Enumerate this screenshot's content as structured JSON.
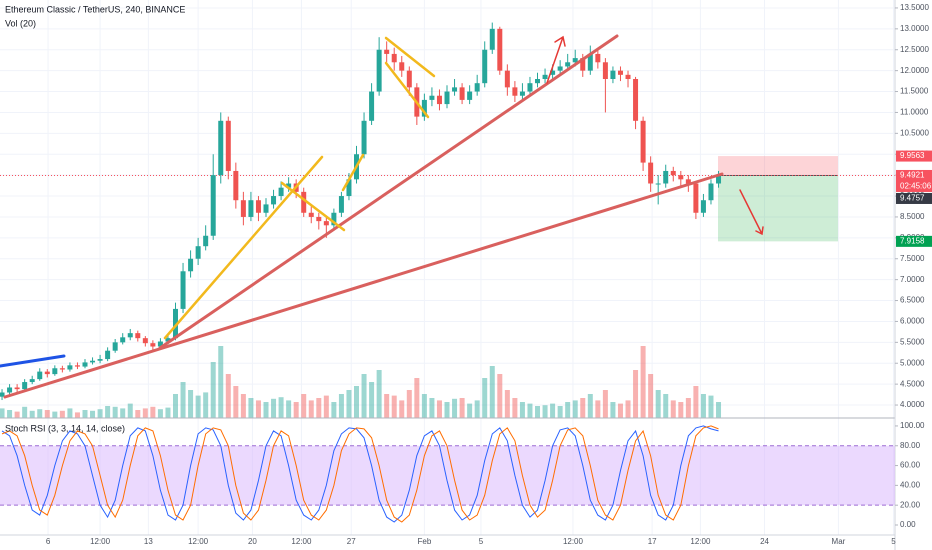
{
  "chart_data": [
    {
      "type": "candlestick",
      "title": "Ethereum Classic / TetherUS, 240, BINANCE",
      "subtitle": "Vol (20)",
      "up_color": "#26a69a",
      "down_color": "#ef5350",
      "open": [
        4.2,
        4.3,
        4.42,
        4.38,
        4.55,
        4.62,
        4.8,
        4.74,
        4.88,
        4.85,
        4.95,
        4.92,
        5.02,
        5.06,
        5.1,
        5.3,
        5.5,
        5.62,
        5.72,
        5.6,
        5.48,
        5.4,
        5.52,
        5.6,
        6.3,
        7.2,
        7.5,
        7.8,
        8.05,
        9.5,
        10.8,
        9.6,
        8.9,
        8.5,
        8.9,
        8.6,
        8.8,
        9.0,
        9.2,
        9.3,
        9.1,
        8.6,
        8.5,
        8.4,
        8.3,
        8.6,
        9.0,
        9.4,
        10.0,
        10.8,
        11.5,
        12.5,
        12.4,
        12.2,
        12.0,
        11.6,
        10.9,
        11.3,
        11.4,
        11.2,
        11.5,
        11.6,
        11.3,
        11.5,
        11.7,
        12.5,
        13.0,
        12.0,
        11.6,
        11.4,
        11.5,
        11.7,
        11.8,
        11.9,
        12.0,
        12.1,
        12.2,
        12.3,
        12.0,
        12.4,
        12.2,
        11.8,
        12.0,
        11.9,
        11.8,
        10.8,
        9.8,
        9.3,
        9.3,
        9.6,
        9.5,
        9.4,
        9.3,
        8.6,
        8.9,
        9.3
      ],
      "high": [
        4.38,
        4.5,
        4.5,
        4.62,
        4.7,
        4.88,
        4.86,
        4.95,
        4.94,
        5.02,
        5.02,
        5.1,
        5.14,
        5.2,
        5.38,
        5.58,
        5.72,
        5.82,
        5.78,
        5.65,
        5.55,
        5.6,
        5.7,
        6.45,
        7.4,
        7.7,
        8.0,
        8.3,
        10.0,
        11.0,
        10.9,
        9.8,
        9.1,
        9.1,
        9.0,
        8.95,
        9.15,
        9.35,
        9.45,
        9.4,
        9.2,
        8.75,
        8.6,
        8.5,
        8.7,
        9.1,
        9.55,
        10.2,
        11.0,
        11.7,
        12.8,
        12.7,
        12.55,
        12.35,
        12.1,
        11.7,
        11.45,
        11.6,
        11.55,
        11.65,
        11.8,
        11.7,
        11.65,
        11.9,
        12.7,
        13.15,
        13.05,
        12.15,
        11.75,
        11.7,
        11.85,
        11.95,
        12.05,
        12.15,
        12.25,
        12.4,
        12.5,
        12.4,
        12.6,
        12.5,
        12.3,
        12.1,
        12.1,
        12.0,
        11.85,
        10.9,
        9.95,
        9.5,
        9.75,
        9.7,
        9.6,
        9.5,
        9.35,
        9.05,
        9.4,
        9.6
      ],
      "low": [
        4.12,
        4.25,
        4.3,
        4.33,
        4.5,
        4.58,
        4.66,
        4.7,
        4.78,
        4.8,
        4.86,
        4.88,
        4.97,
        5.0,
        5.05,
        5.25,
        5.45,
        5.55,
        5.52,
        5.4,
        5.3,
        5.35,
        5.45,
        5.55,
        6.2,
        7.05,
        7.35,
        7.7,
        7.95,
        9.3,
        9.4,
        8.7,
        8.3,
        8.4,
        8.4,
        8.5,
        8.7,
        8.9,
        9.1,
        8.95,
        8.5,
        8.35,
        8.2,
        8.0,
        8.2,
        8.5,
        8.9,
        9.3,
        9.9,
        10.7,
        11.4,
        12.2,
        12.0,
        11.85,
        11.4,
        10.7,
        10.8,
        11.15,
        11.05,
        11.1,
        11.4,
        11.2,
        11.2,
        11.4,
        11.6,
        12.4,
        11.9,
        11.4,
        11.25,
        11.3,
        11.4,
        11.6,
        11.7,
        11.8,
        11.9,
        12.0,
        12.1,
        11.85,
        11.9,
        12.05,
        11.0,
        11.7,
        11.75,
        11.6,
        10.6,
        9.6,
        9.1,
        8.8,
        9.2,
        9.35,
        9.25,
        9.1,
        8.45,
        8.5,
        8.8,
        9.2
      ],
      "close": [
        4.3,
        4.42,
        4.38,
        4.55,
        4.62,
        4.8,
        4.74,
        4.88,
        4.85,
        4.95,
        4.92,
        5.02,
        5.06,
        5.1,
        5.3,
        5.5,
        5.62,
        5.72,
        5.6,
        5.48,
        5.4,
        5.52,
        5.6,
        6.3,
        7.2,
        7.5,
        7.8,
        8.05,
        9.5,
        10.8,
        9.6,
        8.9,
        8.5,
        8.9,
        8.6,
        8.8,
        9.0,
        9.2,
        9.3,
        9.1,
        8.6,
        8.5,
        8.4,
        8.3,
        8.6,
        9.0,
        9.4,
        10.0,
        10.8,
        11.5,
        12.5,
        12.4,
        12.2,
        12.0,
        11.6,
        10.9,
        11.3,
        11.4,
        11.2,
        11.5,
        11.6,
        11.3,
        11.5,
        11.7,
        12.5,
        13.0,
        12.0,
        11.6,
        11.4,
        11.5,
        11.7,
        11.8,
        11.9,
        12.0,
        12.1,
        12.2,
        12.3,
        12.0,
        12.4,
        12.2,
        11.8,
        12.0,
        11.9,
        11.8,
        10.8,
        9.8,
        9.3,
        9.3,
        9.6,
        9.5,
        9.4,
        9.3,
        8.6,
        8.9,
        9.3,
        9.48
      ],
      "volume": [
        12,
        10,
        8,
        14,
        9,
        11,
        10,
        8,
        9,
        12,
        7,
        10,
        9,
        11,
        15,
        14,
        12,
        18,
        10,
        12,
        14,
        11,
        13,
        30,
        45,
        35,
        28,
        32,
        70,
        90,
        55,
        40,
        30,
        25,
        22,
        20,
        24,
        26,
        22,
        20,
        30,
        22,
        25,
        28,
        20,
        30,
        35,
        40,
        55,
        45,
        60,
        30,
        28,
        22,
        35,
        50,
        30,
        25,
        22,
        20,
        24,
        25,
        18,
        22,
        50,
        65,
        55,
        35,
        25,
        20,
        18,
        15,
        16,
        18,
        15,
        20,
        22,
        25,
        30,
        22,
        35,
        20,
        18,
        22,
        60,
        90,
        55,
        35,
        30,
        22,
        20,
        25,
        40,
        30,
        28,
        20
      ],
      "vlim": [
        0,
        100
      ],
      "xlim": [
        -0.27,
        118.4
      ],
      "xticks": [
        {
          "value": 6.1,
          "label": "6"
        },
        {
          "value": 13.0,
          "label": "12:00"
        },
        {
          "value": 19.4,
          "label": "13"
        },
        {
          "value": 26.0,
          "label": "12:00"
        },
        {
          "value": 33.2,
          "label": "20"
        },
        {
          "value": 39.7,
          "label": "12:00"
        },
        {
          "value": 46.3,
          "label": "27"
        },
        {
          "value": 56.0,
          "label": "Feb"
        },
        {
          "value": 63.5,
          "label": "5"
        },
        {
          "value": 75.7,
          "label": "12:00"
        },
        {
          "value": 86.2,
          "label": "17"
        },
        {
          "value": 92.6,
          "label": "12:00"
        },
        {
          "value": 101.1,
          "label": "24"
        },
        {
          "value": 110.9,
          "label": "Mar"
        },
        {
          "value": 118.2,
          "label": "5"
        }
      ],
      "ylim": [
        3.69,
        13.69
      ],
      "yticks": [
        {
          "value": 13.5,
          "label": "13.5000"
        },
        {
          "value": 13,
          "label": "13.0000"
        },
        {
          "value": 12.5,
          "label": "12.5000"
        },
        {
          "value": 12,
          "label": "12.0000"
        },
        {
          "value": 11.5,
          "label": "11.5000"
        },
        {
          "value": 11,
          "label": "11.0000"
        },
        {
          "value": 10.5,
          "label": "10.5000"
        },
        {
          "value": 10,
          "label": "10.0000"
        },
        {
          "value": 9.5,
          "label": "9.5000"
        },
        {
          "value": 9,
          "label": "9.0000"
        },
        {
          "value": 8.5,
          "label": "8.5000"
        },
        {
          "value": 8,
          "label": "8.0000"
        },
        {
          "value": 7.5,
          "label": "7.5000"
        },
        {
          "value": 7,
          "label": "7.0000"
        },
        {
          "value": 6.5,
          "label": "6.5000"
        },
        {
          "value": 6,
          "label": "6.0000"
        },
        {
          "value": 5.5,
          "label": "5.5000"
        },
        {
          "value": 5,
          "label": "5.0000"
        },
        {
          "value": 4.5,
          "label": "4.5000"
        },
        {
          "value": 4,
          "label": "4.0000"
        }
      ],
      "grid": true,
      "price_labels": [
        {
          "value": 9.9563,
          "label": "9.9563",
          "color": "#f7525f"
        },
        {
          "value": 9.4921,
          "label": "9.4921",
          "countdown": "02:45:06",
          "color": "#f7525f"
        },
        {
          "value": 9.4757,
          "label": "9.4757",
          "color": "#363a45"
        },
        {
          "value": 7.9158,
          "label": "7.9158",
          "color": "#00a152"
        }
      ]
    },
    {
      "type": "line",
      "title": "Stoch RSI (3, 3, 14, 14, close)",
      "series": [
        {
          "name": "K",
          "color": "#2962ff",
          "values": [
            95,
            90,
            70,
            40,
            15,
            10,
            30,
            60,
            85,
            95,
            92,
            80,
            50,
            20,
            8,
            25,
            60,
            90,
            98,
            95,
            70,
            35,
            10,
            5,
            20,
            60,
            92,
            98,
            96,
            80,
            40,
            12,
            5,
            15,
            45,
            80,
            95,
            90,
            60,
            25,
            10,
            5,
            15,
            40,
            75,
            92,
            98,
            97,
            88,
            60,
            25,
            8,
            3,
            10,
            35,
            70,
            90,
            95,
            80,
            45,
            15,
            5,
            10,
            30,
            65,
            92,
            98,
            85,
            50,
            20,
            8,
            15,
            45,
            80,
            96,
            98,
            90,
            60,
            25,
            10,
            5,
            20,
            55,
            85,
            95,
            70,
            30,
            10,
            5,
            20,
            60,
            90,
            98,
            100,
            97,
            95
          ]
        },
        {
          "name": "D",
          "color": "#ff6d00",
          "values": [
            92,
            95,
            90,
            70,
            40,
            15,
            10,
            30,
            60,
            85,
            95,
            92,
            80,
            50,
            20,
            8,
            25,
            60,
            90,
            98,
            95,
            70,
            35,
            10,
            5,
            20,
            60,
            92,
            98,
            96,
            80,
            40,
            12,
            5,
            15,
            45,
            80,
            95,
            90,
            60,
            25,
            10,
            5,
            15,
            40,
            75,
            92,
            98,
            97,
            88,
            60,
            25,
            8,
            3,
            10,
            35,
            70,
            90,
            95,
            80,
            45,
            15,
            5,
            10,
            30,
            65,
            92,
            98,
            85,
            50,
            20,
            8,
            15,
            45,
            80,
            96,
            98,
            90,
            60,
            25,
            10,
            5,
            20,
            55,
            85,
            95,
            70,
            30,
            10,
            5,
            20,
            60,
            90,
            98,
            100,
            97
          ]
        }
      ],
      "band": [
        20,
        80
      ],
      "band_color": "#d8b4fe",
      "ylim": [
        -10.1,
        106
      ],
      "yticks": [
        {
          "value": 100,
          "label": "100.00"
        },
        {
          "value": 80,
          "label": "80.00"
        },
        {
          "value": 60,
          "label": "60.00"
        },
        {
          "value": 40,
          "label": "40.00"
        },
        {
          "value": 20,
          "label": "20.00"
        },
        {
          "value": 0,
          "label": "0.00"
        }
      ]
    }
  ]
}
